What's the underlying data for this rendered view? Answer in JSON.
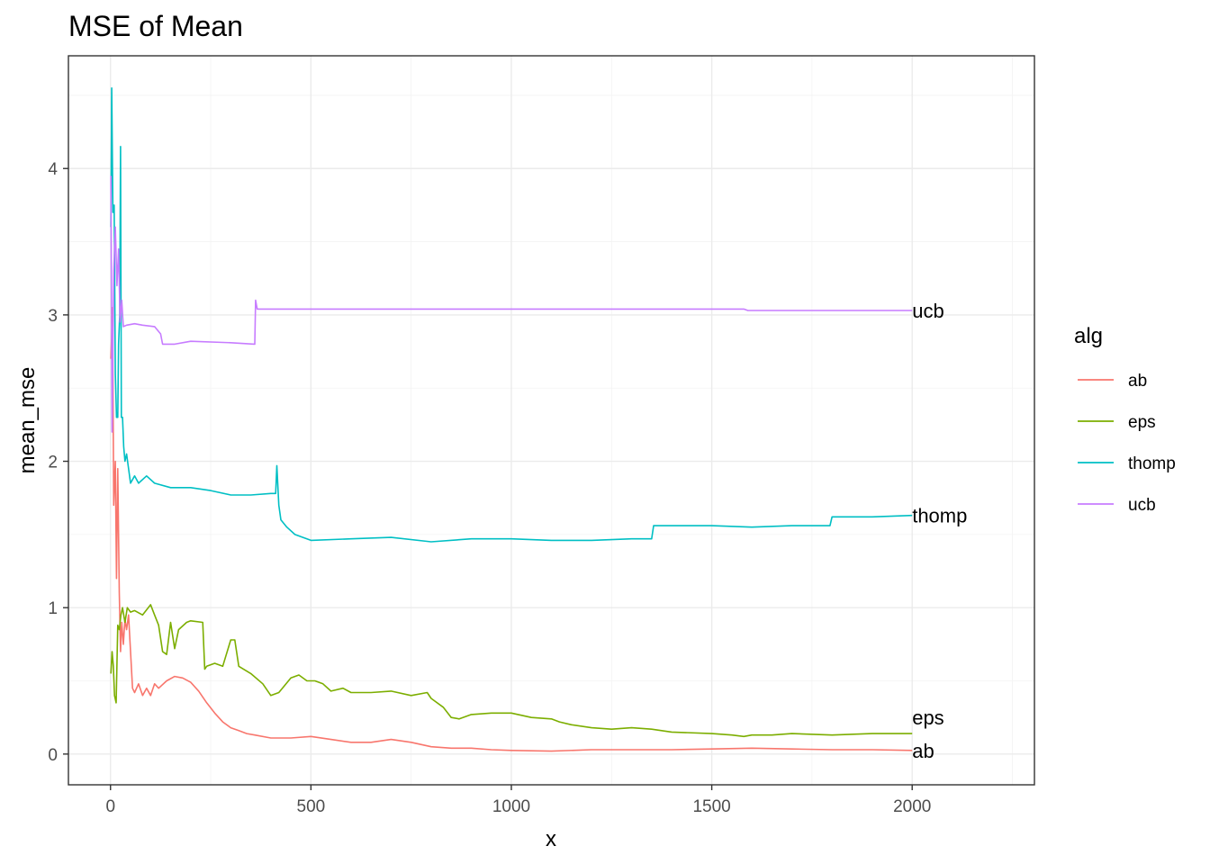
{
  "chart_data": {
    "type": "line",
    "title": "MSE of Mean",
    "xlabel": "x",
    "ylabel": "mean_mse",
    "xlim": [
      -105,
      2305
    ],
    "ylim": [
      -0.21,
      4.77
    ],
    "x_ticks": [
      0,
      500,
      1000,
      1500,
      2000
    ],
    "y_ticks": [
      0,
      1,
      2,
      3,
      4
    ],
    "grid": true,
    "legend": {
      "title": "alg",
      "position": "right"
    },
    "series": [
      {
        "name": "ab",
        "color": "#F8766D",
        "end_label": "ab",
        "points": [
          [
            1,
            2.7
          ],
          [
            5,
            3.05
          ],
          [
            8,
            1.7
          ],
          [
            12,
            2.0
          ],
          [
            15,
            1.2
          ],
          [
            18,
            1.95
          ],
          [
            22,
            1.1
          ],
          [
            25,
            0.7
          ],
          [
            28,
            0.9
          ],
          [
            32,
            0.75
          ],
          [
            36,
            0.92
          ],
          [
            40,
            0.85
          ],
          [
            45,
            0.95
          ],
          [
            50,
            0.7
          ],
          [
            55,
            0.45
          ],
          [
            60,
            0.42
          ],
          [
            70,
            0.48
          ],
          [
            80,
            0.4
          ],
          [
            90,
            0.45
          ],
          [
            100,
            0.4
          ],
          [
            110,
            0.48
          ],
          [
            120,
            0.45
          ],
          [
            140,
            0.5
          ],
          [
            160,
            0.53
          ],
          [
            180,
            0.52
          ],
          [
            200,
            0.49
          ],
          [
            220,
            0.43
          ],
          [
            240,
            0.35
          ],
          [
            260,
            0.28
          ],
          [
            280,
            0.22
          ],
          [
            300,
            0.18
          ],
          [
            320,
            0.16
          ],
          [
            340,
            0.14
          ],
          [
            360,
            0.13
          ],
          [
            400,
            0.11
          ],
          [
            450,
            0.11
          ],
          [
            500,
            0.12
          ],
          [
            550,
            0.1
          ],
          [
            600,
            0.08
          ],
          [
            650,
            0.08
          ],
          [
            700,
            0.1
          ],
          [
            750,
            0.08
          ],
          [
            800,
            0.05
          ],
          [
            850,
            0.04
          ],
          [
            900,
            0.04
          ],
          [
            950,
            0.03
          ],
          [
            1000,
            0.025
          ],
          [
            1100,
            0.02
          ],
          [
            1200,
            0.03
          ],
          [
            1300,
            0.03
          ],
          [
            1400,
            0.03
          ],
          [
            1500,
            0.035
          ],
          [
            1600,
            0.04
          ],
          [
            1700,
            0.035
          ],
          [
            1800,
            0.03
          ],
          [
            1900,
            0.03
          ],
          [
            2000,
            0.025
          ]
        ]
      },
      {
        "name": "eps",
        "color": "#7CAE00",
        "end_label": "eps",
        "points": [
          [
            1,
            0.55
          ],
          [
            4,
            0.7
          ],
          [
            7,
            0.6
          ],
          [
            10,
            0.4
          ],
          [
            14,
            0.35
          ],
          [
            18,
            0.88
          ],
          [
            22,
            0.85
          ],
          [
            26,
            0.95
          ],
          [
            30,
            1.0
          ],
          [
            36,
            0.9
          ],
          [
            42,
            1.0
          ],
          [
            50,
            0.97
          ],
          [
            60,
            0.98
          ],
          [
            80,
            0.95
          ],
          [
            100,
            1.02
          ],
          [
            110,
            0.95
          ],
          [
            120,
            0.88
          ],
          [
            130,
            0.7
          ],
          [
            140,
            0.68
          ],
          [
            150,
            0.9
          ],
          [
            160,
            0.72
          ],
          [
            170,
            0.85
          ],
          [
            190,
            0.9
          ],
          [
            200,
            0.91
          ],
          [
            230,
            0.9
          ],
          [
            235,
            0.58
          ],
          [
            240,
            0.6
          ],
          [
            260,
            0.62
          ],
          [
            280,
            0.6
          ],
          [
            300,
            0.78
          ],
          [
            310,
            0.78
          ],
          [
            320,
            0.6
          ],
          [
            350,
            0.55
          ],
          [
            380,
            0.48
          ],
          [
            400,
            0.4
          ],
          [
            420,
            0.42
          ],
          [
            450,
            0.52
          ],
          [
            470,
            0.54
          ],
          [
            490,
            0.5
          ],
          [
            510,
            0.5
          ],
          [
            530,
            0.48
          ],
          [
            550,
            0.43
          ],
          [
            580,
            0.45
          ],
          [
            600,
            0.42
          ],
          [
            650,
            0.42
          ],
          [
            700,
            0.43
          ],
          [
            750,
            0.4
          ],
          [
            790,
            0.42
          ],
          [
            800,
            0.38
          ],
          [
            830,
            0.32
          ],
          [
            850,
            0.25
          ],
          [
            870,
            0.24
          ],
          [
            900,
            0.27
          ],
          [
            950,
            0.28
          ],
          [
            1000,
            0.28
          ],
          [
            1050,
            0.25
          ],
          [
            1100,
            0.24
          ],
          [
            1120,
            0.22
          ],
          [
            1150,
            0.2
          ],
          [
            1200,
            0.18
          ],
          [
            1250,
            0.17
          ],
          [
            1300,
            0.18
          ],
          [
            1350,
            0.17
          ],
          [
            1400,
            0.15
          ],
          [
            1500,
            0.14
          ],
          [
            1550,
            0.13
          ],
          [
            1580,
            0.12
          ],
          [
            1600,
            0.13
          ],
          [
            1650,
            0.13
          ],
          [
            1700,
            0.14
          ],
          [
            1800,
            0.13
          ],
          [
            1900,
            0.14
          ],
          [
            2000,
            0.14
          ]
        ]
      },
      {
        "name": "thomp",
        "color": "#00BFC4",
        "end_label": "thomp",
        "points": [
          [
            1,
            3.6
          ],
          [
            3,
            4.55
          ],
          [
            6,
            3.7
          ],
          [
            9,
            3.75
          ],
          [
            12,
            2.6
          ],
          [
            15,
            2.3
          ],
          [
            18,
            2.3
          ],
          [
            20,
            2.8
          ],
          [
            23,
            3.0
          ],
          [
            25,
            4.15
          ],
          [
            27,
            2.3
          ],
          [
            30,
            2.3
          ],
          [
            33,
            2.1
          ],
          [
            36,
            2.0
          ],
          [
            40,
            2.05
          ],
          [
            45,
            1.95
          ],
          [
            50,
            1.85
          ],
          [
            60,
            1.9
          ],
          [
            70,
            1.85
          ],
          [
            90,
            1.9
          ],
          [
            110,
            1.85
          ],
          [
            150,
            1.82
          ],
          [
            200,
            1.82
          ],
          [
            250,
            1.8
          ],
          [
            300,
            1.77
          ],
          [
            350,
            1.77
          ],
          [
            400,
            1.78
          ],
          [
            412,
            1.78
          ],
          [
            415,
            1.97
          ],
          [
            420,
            1.7
          ],
          [
            425,
            1.6
          ],
          [
            440,
            1.55
          ],
          [
            460,
            1.5
          ],
          [
            500,
            1.46
          ],
          [
            600,
            1.47
          ],
          [
            700,
            1.48
          ],
          [
            800,
            1.45
          ],
          [
            900,
            1.47
          ],
          [
            1000,
            1.47
          ],
          [
            1100,
            1.46
          ],
          [
            1200,
            1.46
          ],
          [
            1300,
            1.47
          ],
          [
            1350,
            1.47
          ],
          [
            1355,
            1.56
          ],
          [
            1500,
            1.56
          ],
          [
            1600,
            1.55
          ],
          [
            1700,
            1.56
          ],
          [
            1795,
            1.56
          ],
          [
            1800,
            1.62
          ],
          [
            1900,
            1.62
          ],
          [
            2000,
            1.63
          ]
        ]
      },
      {
        "name": "ucb",
        "color": "#C77CFF",
        "end_label": "ucb",
        "points": [
          [
            1,
            3.95
          ],
          [
            4,
            2.2
          ],
          [
            8,
            3.3
          ],
          [
            12,
            3.6
          ],
          [
            16,
            3.2
          ],
          [
            20,
            3.45
          ],
          [
            24,
            2.95
          ],
          [
            28,
            3.1
          ],
          [
            32,
            2.92
          ],
          [
            40,
            2.93
          ],
          [
            60,
            2.94
          ],
          [
            80,
            2.93
          ],
          [
            110,
            2.92
          ],
          [
            125,
            2.87
          ],
          [
            130,
            2.8
          ],
          [
            160,
            2.8
          ],
          [
            200,
            2.82
          ],
          [
            300,
            2.81
          ],
          [
            360,
            2.8
          ],
          [
            362,
            3.1
          ],
          [
            366,
            3.04
          ],
          [
            400,
            3.04
          ],
          [
            600,
            3.04
          ],
          [
            800,
            3.04
          ],
          [
            1000,
            3.04
          ],
          [
            1200,
            3.04
          ],
          [
            1400,
            3.04
          ],
          [
            1580,
            3.04
          ],
          [
            1590,
            3.03
          ],
          [
            1800,
            3.03
          ],
          [
            2000,
            3.03
          ]
        ]
      }
    ]
  }
}
